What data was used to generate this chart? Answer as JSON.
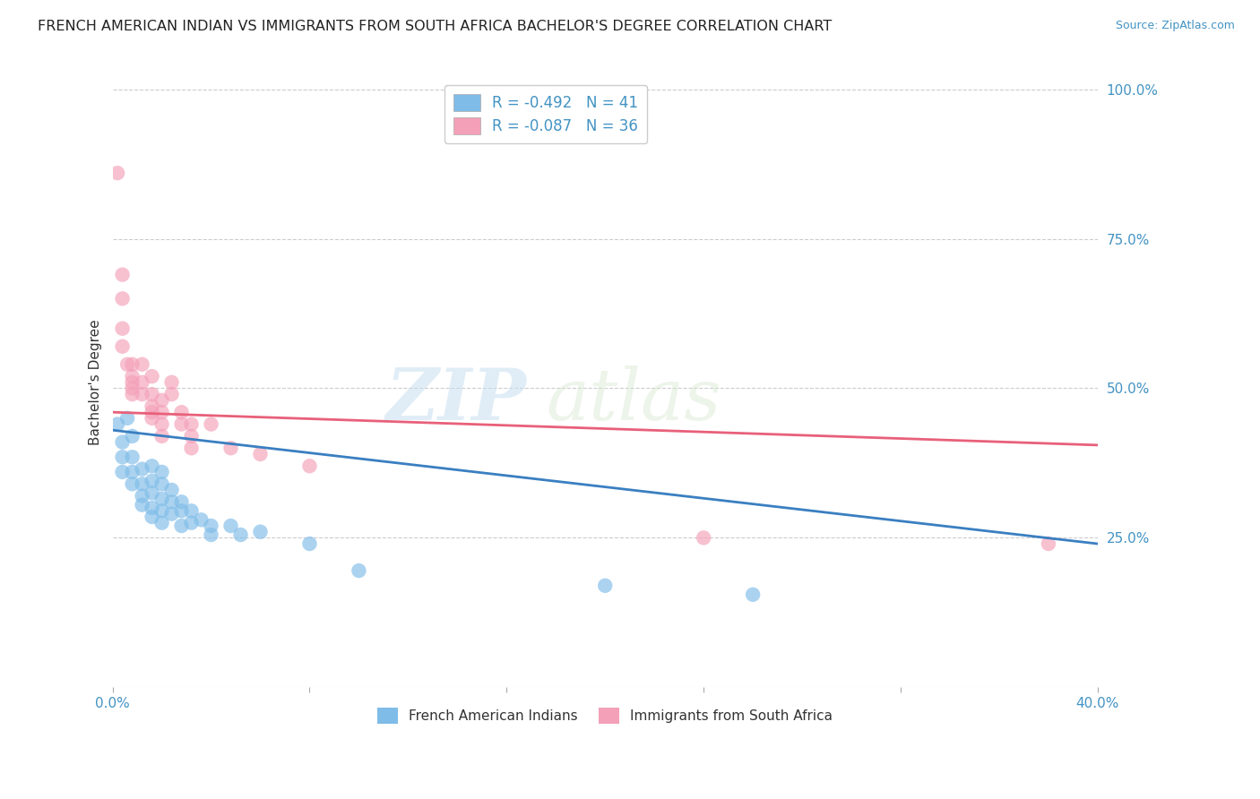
{
  "title": "FRENCH AMERICAN INDIAN VS IMMIGRANTS FROM SOUTH AFRICA BACHELOR'S DEGREE CORRELATION CHART",
  "source": "Source: ZipAtlas.com",
  "ylabel": "Bachelor's Degree",
  "watermark_zip": "ZIP",
  "watermark_atlas": "atlas",
  "legend_entries": [
    {
      "label": "R = -0.492   N = 41",
      "color": "#a8c8e8"
    },
    {
      "label": "R = -0.087   N = 36",
      "color": "#f4b0c0"
    }
  ],
  "legend_bottom": [
    "French American Indians",
    "Immigrants from South Africa"
  ],
  "xlim": [
    0.0,
    0.1
  ],
  "ylim": [
    0.0,
    1.02
  ],
  "x_ticks": [
    0.0,
    0.02,
    0.04,
    0.06,
    0.08,
    0.1
  ],
  "x_tick_labels_show": [
    "0.0%",
    "40.0%"
  ],
  "y_ticks": [
    0.0,
    0.25,
    0.5,
    0.75,
    1.0
  ],
  "y_tick_labels": [
    "",
    "25.0%",
    "50.0%",
    "75.0%",
    "100.0%"
  ],
  "grid_color": "#cccccc",
  "background_color": "#ffffff",
  "blue_color": "#7fbce8",
  "pink_color": "#f4a0b8",
  "blue_line_color": "#3a7fc1",
  "pink_line_color": "#e8607a",
  "blue_scatter": [
    [
      0.0005,
      0.44
    ],
    [
      0.001,
      0.41
    ],
    [
      0.001,
      0.385
    ],
    [
      0.001,
      0.36
    ],
    [
      0.0015,
      0.45
    ],
    [
      0.002,
      0.42
    ],
    [
      0.002,
      0.385
    ],
    [
      0.002,
      0.36
    ],
    [
      0.002,
      0.34
    ],
    [
      0.003,
      0.365
    ],
    [
      0.003,
      0.34
    ],
    [
      0.003,
      0.32
    ],
    [
      0.003,
      0.305
    ],
    [
      0.004,
      0.37
    ],
    [
      0.004,
      0.345
    ],
    [
      0.004,
      0.325
    ],
    [
      0.004,
      0.3
    ],
    [
      0.004,
      0.285
    ],
    [
      0.005,
      0.36
    ],
    [
      0.005,
      0.34
    ],
    [
      0.005,
      0.315
    ],
    [
      0.005,
      0.295
    ],
    [
      0.005,
      0.275
    ],
    [
      0.006,
      0.33
    ],
    [
      0.006,
      0.31
    ],
    [
      0.006,
      0.29
    ],
    [
      0.007,
      0.31
    ],
    [
      0.007,
      0.295
    ],
    [
      0.007,
      0.27
    ],
    [
      0.008,
      0.295
    ],
    [
      0.008,
      0.275
    ],
    [
      0.009,
      0.28
    ],
    [
      0.01,
      0.27
    ],
    [
      0.01,
      0.255
    ],
    [
      0.012,
      0.27
    ],
    [
      0.013,
      0.255
    ],
    [
      0.015,
      0.26
    ],
    [
      0.02,
      0.24
    ],
    [
      0.025,
      0.195
    ],
    [
      0.05,
      0.17
    ],
    [
      0.065,
      0.155
    ]
  ],
  "pink_scatter": [
    [
      0.0005,
      0.86
    ],
    [
      0.001,
      0.69
    ],
    [
      0.001,
      0.65
    ],
    [
      0.001,
      0.6
    ],
    [
      0.001,
      0.57
    ],
    [
      0.0015,
      0.54
    ],
    [
      0.002,
      0.54
    ],
    [
      0.002,
      0.52
    ],
    [
      0.002,
      0.5
    ],
    [
      0.002,
      0.51
    ],
    [
      0.002,
      0.49
    ],
    [
      0.003,
      0.54
    ],
    [
      0.003,
      0.51
    ],
    [
      0.003,
      0.49
    ],
    [
      0.004,
      0.52
    ],
    [
      0.004,
      0.49
    ],
    [
      0.004,
      0.47
    ],
    [
      0.004,
      0.46
    ],
    [
      0.004,
      0.45
    ],
    [
      0.005,
      0.48
    ],
    [
      0.005,
      0.46
    ],
    [
      0.005,
      0.44
    ],
    [
      0.005,
      0.42
    ],
    [
      0.006,
      0.51
    ],
    [
      0.006,
      0.49
    ],
    [
      0.007,
      0.46
    ],
    [
      0.007,
      0.44
    ],
    [
      0.008,
      0.44
    ],
    [
      0.008,
      0.42
    ],
    [
      0.008,
      0.4
    ],
    [
      0.01,
      0.44
    ],
    [
      0.012,
      0.4
    ],
    [
      0.015,
      0.39
    ],
    [
      0.02,
      0.37
    ],
    [
      0.06,
      0.25
    ],
    [
      0.095,
      0.24
    ]
  ],
  "blue_trendline": [
    [
      0.0,
      0.43
    ],
    [
      0.1,
      0.24
    ]
  ],
  "pink_trendline": [
    [
      0.0,
      0.46
    ],
    [
      0.1,
      0.405
    ]
  ]
}
